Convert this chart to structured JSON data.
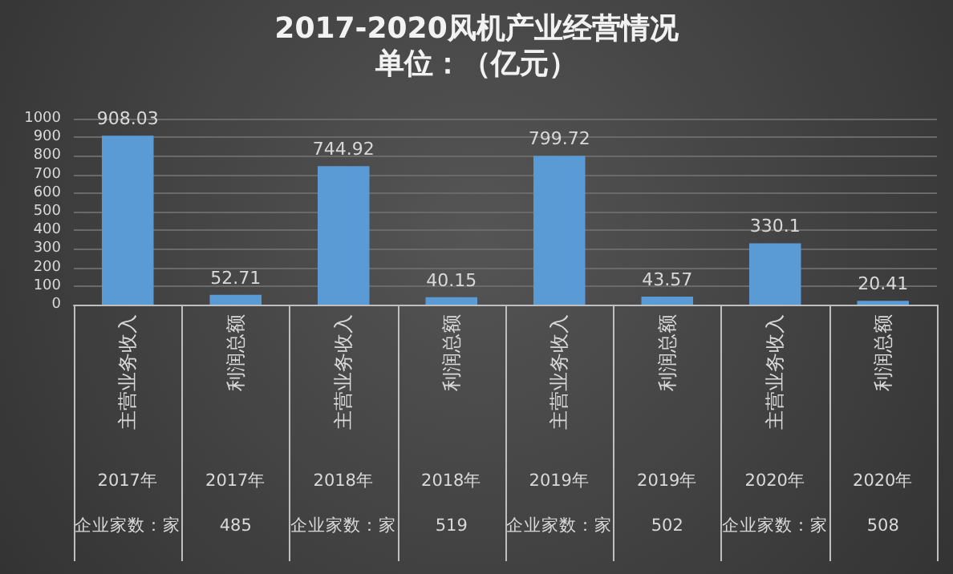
{
  "chart_data": {
    "type": "bar",
    "title": "2017-2020风机产业经营情况",
    "subtitle": "单位：（亿元）",
    "categories": [
      "主营业务收入",
      "利润总额",
      "主营业务收入",
      "利润总额",
      "主营业务收入",
      "利润总额",
      "主营业务收入",
      "利润总额"
    ],
    "values": [
      908.03,
      52.71,
      744.92,
      40.15,
      799.72,
      43.57,
      330.1,
      20.41
    ],
    "color": "#5b9bd5",
    "ylim": [
      0,
      1000
    ],
    "yticks": [
      0,
      100,
      200,
      300,
      400,
      500,
      600,
      700,
      800,
      900,
      1000
    ],
    "grid": "y",
    "data_labels": true,
    "annotations": [
      "2017年",
      "2017年",
      "2018年",
      "2018年",
      "2019年",
      "2019年",
      "2020年",
      "2020年",
      "企业家数：家",
      "485",
      "企业家数：家",
      "519",
      "企业家数：家",
      "502",
      "企业家数：家",
      "508"
    ]
  }
}
